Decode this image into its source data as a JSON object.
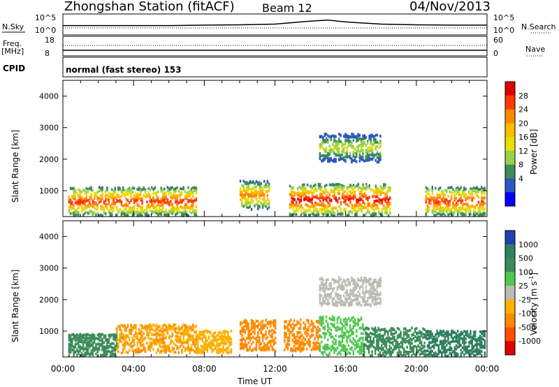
{
  "header": {
    "title": "Zhongshan Station (fitACF)",
    "beam": "Beam 12",
    "date": "04/Nov/2013"
  },
  "panels": {
    "nsky": {
      "left_label": "N.Sky",
      "left_ticks": [
        "10^5",
        "10^0"
      ],
      "right_label": "N.Search",
      "right_ticks": [
        "10^5",
        "10^0"
      ]
    },
    "freq": {
      "left_label_1": "Freq.",
      "left_label_2": "[MHz]",
      "left_ticks": [
        "18",
        "8"
      ],
      "right_label": "Nave",
      "right_ticks": [
        "60",
        "0"
      ]
    },
    "cpid": {
      "label": "CPID",
      "text": "normal (fast stereo) 153"
    },
    "power": {
      "ylabel": "Slant Range [km]",
      "cbar_label": "Power [dB]",
      "cbar_ticks": [
        "28",
        "24",
        "20",
        "16",
        "12",
        "8",
        "4"
      ],
      "cbar_colors": [
        "#e00000",
        "#ff3a00",
        "#ff8800",
        "#ffbb00",
        "#e8e000",
        "#9ad04a",
        "#3d8a5a",
        "#2e56c0",
        "#0000ff"
      ]
    },
    "velocity": {
      "ylabel": "Slant Range [km]",
      "cbar_label": "Velocity  [m s",
      "cbar_label_sup": "-1",
      "cbar_label_end": "]",
      "cbar_ticks": [
        "1000",
        "500",
        "100",
        "25",
        "-25",
        "-100",
        "-500",
        "-1000"
      ],
      "cbar_colors": [
        "#2040b0",
        "#2e8060",
        "#3c8c5a",
        "#50c850",
        "#bcbcb4",
        "#ffb000",
        "#ff8a00",
        "#ff5000",
        "#e00000"
      ]
    }
  },
  "axis": {
    "xlabel": "Time UT",
    "xticks": [
      "00:00",
      "04:00",
      "08:00",
      "12:00",
      "16:00",
      "20:00",
      "00:00"
    ],
    "yticks": [
      "4000",
      "3000",
      "2000",
      "1000"
    ]
  },
  "chart_data": [
    {
      "type": "line",
      "name": "N.Sky / N.Search",
      "x_hours": [
        0,
        2,
        4,
        6,
        8,
        10,
        12,
        13,
        14,
        15,
        16,
        18,
        20,
        22,
        24
      ],
      "y_log10": [
        2.2,
        2.2,
        2.2,
        2.2,
        2.3,
        2.4,
        2.6,
        3.0,
        3.4,
        3.7,
        3.2,
        2.6,
        2.4,
        2.3,
        2.3
      ]
    },
    {
      "type": "line",
      "name": "Freq / Nave",
      "x_hours": [
        0,
        24
      ],
      "freq_mhz": [
        11,
        11
      ],
      "nave": [
        25,
        25
      ]
    },
    {
      "type": "heatmap",
      "name": "Power",
      "x_range_hours": [
        0,
        24
      ],
      "y_range_km": [
        180,
        4500
      ],
      "z_range_db": [
        0,
        30
      ],
      "bands": [
        {
          "t0": 0.3,
          "t1": 7.5,
          "r_center": 700,
          "r_width": 900,
          "peak_db": 26
        },
        {
          "t0": 10,
          "t1": 11.7,
          "r_center": 900,
          "r_width": 900,
          "peak_db": 22
        },
        {
          "t0": 12.8,
          "t1": 18.5,
          "r_center": 750,
          "r_width": 1000,
          "peak_db": 28
        },
        {
          "t0": 20.5,
          "t1": 23.9,
          "r_center": 700,
          "r_width": 900,
          "peak_db": 26
        },
        {
          "t0": 14.5,
          "t1": 18,
          "r_center": 2400,
          "r_width": 900,
          "peak_db": 14
        }
      ]
    },
    {
      "type": "heatmap",
      "name": "Velocity",
      "x_range_hours": [
        0,
        24
      ],
      "y_range_km": [
        180,
        4500
      ],
      "z_range_ms": [
        -1000,
        1000
      ],
      "bands": [
        {
          "t0": 0.3,
          "t1": 3,
          "r_center": 600,
          "r_width": 700,
          "vel": 200
        },
        {
          "t0": 3,
          "t1": 7.5,
          "r_center": 800,
          "r_width": 900,
          "vel": -120
        },
        {
          "t0": 7.5,
          "t1": 9.5,
          "r_center": 700,
          "r_width": 700,
          "vel": -60
        },
        {
          "t0": 10,
          "t1": 12,
          "r_center": 900,
          "r_width": 1000,
          "vel": -300
        },
        {
          "t0": 12.5,
          "t1": 14.5,
          "r_center": 900,
          "r_width": 1000,
          "vel": -200
        },
        {
          "t0": 14.5,
          "t1": 17,
          "r_center": 900,
          "r_width": 1200,
          "vel": 80
        },
        {
          "t0": 17,
          "t1": 20.5,
          "r_center": 700,
          "r_width": 900,
          "vel": 250
        },
        {
          "t0": 20.5,
          "t1": 23.9,
          "r_center": 650,
          "r_width": 800,
          "vel": 900
        },
        {
          "t0": 14.5,
          "t1": 18,
          "r_center": 2300,
          "r_width": 900,
          "vel": 10
        }
      ]
    }
  ]
}
